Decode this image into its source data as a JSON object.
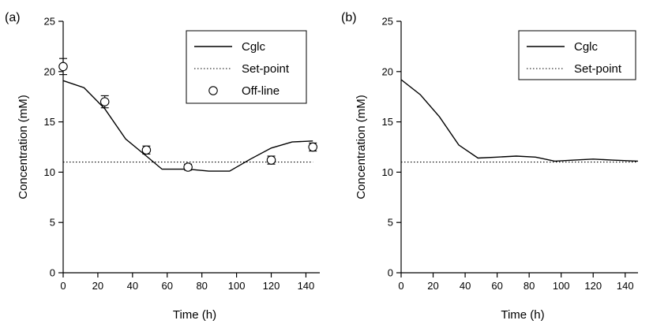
{
  "chart_data": [
    {
      "type": "line",
      "panel_label": "(a)",
      "xlabel": "Time (h)",
      "ylabel": "Concentration (mM)",
      "xlim": [
        0,
        148
      ],
      "ylim": [
        0,
        25
      ],
      "xticks": [
        0,
        20,
        40,
        60,
        80,
        100,
        120,
        140
      ],
      "yticks": [
        0,
        5,
        10,
        15,
        20,
        25
      ],
      "legend_position": "top-right",
      "series": [
        {
          "name": "Cglc",
          "style": "solid",
          "x": [
            0,
            12,
            24,
            36,
            48,
            57,
            72,
            84,
            96,
            108,
            120,
            132,
            144
          ],
          "y": [
            19.1,
            18.4,
            16.3,
            13.3,
            11.6,
            10.3,
            10.3,
            10.1,
            10.1,
            11.3,
            12.4,
            13.0,
            13.1
          ]
        },
        {
          "name": "Set-point",
          "style": "dotted",
          "x": [
            0,
            144
          ],
          "y": [
            11,
            11
          ]
        },
        {
          "name": "Off-line",
          "style": "markers",
          "x": [
            0,
            24,
            48,
            72,
            120,
            144
          ],
          "y": [
            20.5,
            17.0,
            12.2,
            10.5,
            11.2,
            12.5
          ],
          "err": [
            0.8,
            0.6,
            0.4,
            0.3,
            0.4,
            0.4
          ]
        }
      ]
    },
    {
      "type": "line",
      "panel_label": "(b)",
      "xlabel": "Time (h)",
      "ylabel": "Concentration (mM)",
      "xlim": [
        0,
        148
      ],
      "ylim": [
        0,
        25
      ],
      "xticks": [
        0,
        20,
        40,
        60,
        80,
        100,
        120,
        140
      ],
      "yticks": [
        0,
        5,
        10,
        15,
        20,
        25
      ],
      "legend_position": "top-right",
      "series": [
        {
          "name": "Cglc",
          "style": "solid",
          "x": [
            0,
            12,
            24,
            36,
            48,
            60,
            72,
            84,
            96,
            108,
            120,
            132,
            148
          ],
          "y": [
            19.2,
            17.7,
            15.5,
            12.7,
            11.4,
            11.5,
            11.6,
            11.5,
            11.1,
            11.2,
            11.3,
            11.2,
            11.1
          ]
        },
        {
          "name": "Set-point",
          "style": "dotted",
          "x": [
            0,
            148
          ],
          "y": [
            11,
            11
          ]
        }
      ]
    }
  ]
}
